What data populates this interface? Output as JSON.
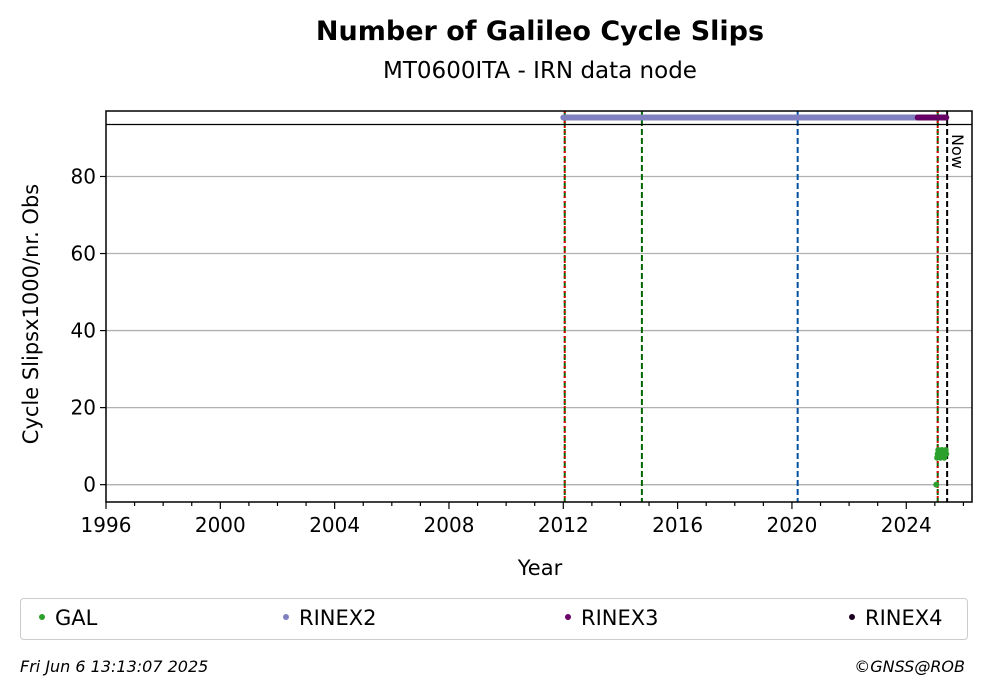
{
  "title": "Number of Galileo Cycle Slips",
  "subtitle": "MT0600ITA - IRN data node",
  "footer": {
    "timestamp": "Fri Jun  6 13:13:07 2025",
    "copyright": "©GNSS@ROB"
  },
  "chart_data": {
    "type": "scatter",
    "title": "Number of Galileo Cycle Slips",
    "subtitle": "MT0600ITA - IRN data node",
    "xlabel": "Year",
    "ylabel": "Cycle Slipsx1000/nr. Obs",
    "xlim": [
      1996,
      2026.3
    ],
    "ylim": [
      -4.5,
      97
    ],
    "x_ticks": [
      1996,
      2000,
      2004,
      2008,
      2012,
      2016,
      2020,
      2024
    ],
    "x_tick_labels": [
      "1996",
      "2000",
      "2004",
      "2008",
      "2012",
      "2016",
      "2020",
      "2024"
    ],
    "y_ticks": [
      0,
      20,
      40,
      60,
      80
    ],
    "y_tick_labels": [
      "0",
      "20",
      "40",
      "60",
      "80"
    ],
    "grid": "horizontal",
    "legend_placement": "bottom",
    "series": [
      {
        "name": "GAL",
        "color": "#2ca02c",
        "x": [
          2025.05,
          2025.08,
          2025.1,
          2025.12,
          2025.15,
          2025.18,
          2025.2,
          2025.22,
          2025.25,
          2025.28,
          2025.3,
          2025.33,
          2025.35,
          2025.38,
          2025.4
        ],
        "y": [
          0,
          7,
          8,
          9,
          7.5,
          8.5,
          7,
          8,
          9,
          7.5,
          8,
          7,
          8.5,
          9,
          8
        ]
      },
      {
        "name": "RINEX2",
        "color": "#8080c0",
        "x_range": [
          2012.0,
          2025.1
        ],
        "y": 95.3
      },
      {
        "name": "RINEX3",
        "color": "#660066",
        "x_range": [
          2024.4,
          2025.4
        ],
        "y": 95.3
      },
      {
        "name": "RINEX4",
        "color": "#1a0022",
        "x": [],
        "y": []
      }
    ],
    "event_lines": [
      {
        "x": 2012.05,
        "color": "#006600",
        "style": "dashed"
      },
      {
        "x": 2012.05,
        "color": "#dd0000",
        "style": "dotted"
      },
      {
        "x": 2014.75,
        "color": "#006600",
        "style": "dashed"
      },
      {
        "x": 2020.2,
        "color": "#0050a0",
        "style": "dashed"
      },
      {
        "x": 2025.1,
        "color": "#006600",
        "style": "dashed"
      },
      {
        "x": 2025.1,
        "color": "#dd0000",
        "style": "dotted"
      },
      {
        "x": 2025.43,
        "color": "#000000",
        "style": "dashed"
      }
    ],
    "now_label": "Now",
    "now_x": 2025.43,
    "top_band_y": 93.5
  },
  "legend": [
    {
      "label": "GAL",
      "color": "#2ca02c"
    },
    {
      "label": "RINEX2",
      "color": "#8080c0"
    },
    {
      "label": "RINEX3",
      "color": "#660066"
    },
    {
      "label": "RINEX4",
      "color": "#1a0022"
    }
  ]
}
